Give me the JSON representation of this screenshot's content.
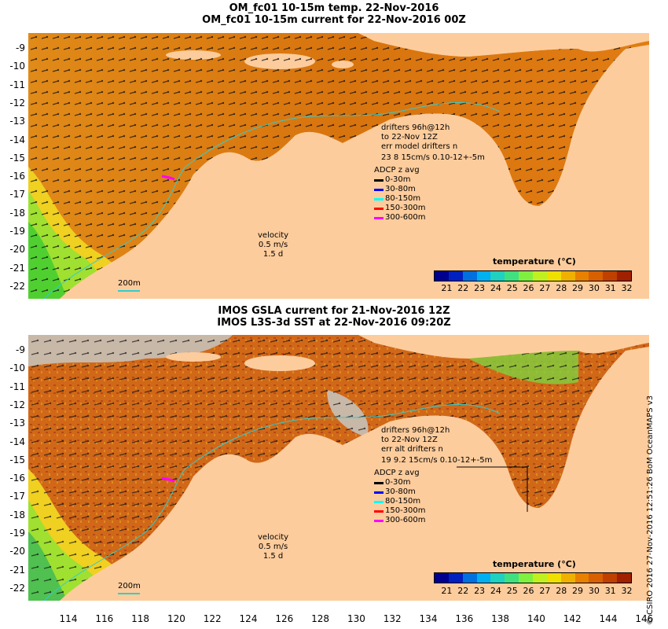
{
  "panels": [
    {
      "title_line1": "OM_fc01 10-15m temp. 22-Nov-2016",
      "title_line2": "OM_fc01 10-15m current for 22-Nov-2016 00Z",
      "drifters_line1": "drifters 96h@12h",
      "drifters_line2": "to 22-Nov 12Z",
      "err_line": "err model drifters n",
      "stats_line": "23 8 15cm/s 0.10-12+-5m",
      "velocity_label": "velocity",
      "velocity_value": "0.5 m/s",
      "velocity_time": "1.5 d",
      "scale_label": "200m"
    },
    {
      "title_line1": "IMOS GSLA current for 21-Nov-2016 12Z",
      "title_line2": "IMOS L3S-3d SST at 22-Nov-2016 09:20Z",
      "drifters_line1": "drifters 96h@12h",
      "drifters_line2": "to 22-Nov 12Z",
      "err_line": "err alt drifters n",
      "stats_line": "19 9.2 15cm/s 0.10-12+-5m",
      "velocity_label": "velocity",
      "velocity_value": "0.5 m/s",
      "velocity_time": "1.5 d",
      "scale_label": "200m"
    }
  ],
  "adcp": {
    "title": "ADCP z avg",
    "bands": [
      {
        "label": "0-30m",
        "color": "#000000"
      },
      {
        "label": "30-80m",
        "color": "#0000ff"
      },
      {
        "label": "80-150m",
        "color": "#00ffff"
      },
      {
        "label": "150-300m",
        "color": "#ff0000"
      },
      {
        "label": "300-600m",
        "color": "#ff00ff"
      }
    ]
  },
  "colorbar": {
    "title": "temperature (°C)",
    "ticks": [
      "21",
      "22",
      "23",
      "24",
      "25",
      "26",
      "27",
      "28",
      "29",
      "30",
      "31",
      "32"
    ],
    "colors": [
      "#00008f",
      "#0020c0",
      "#0070e0",
      "#00b0f0",
      "#20d0c0",
      "#40e080",
      "#80f040",
      "#c0f020",
      "#f0e000",
      "#f0b000",
      "#e88000",
      "#d86000",
      "#c04000",
      "#a02000"
    ]
  },
  "lat_ticks": [
    "-9",
    "-10",
    "-11",
    "-12",
    "-13",
    "-14",
    "-15",
    "-16",
    "-17",
    "-18",
    "-19",
    "-20",
    "-21",
    "-22"
  ],
  "lon_ticks": [
    "114",
    "116",
    "118",
    "120",
    "122",
    "124",
    "126",
    "128",
    "130",
    "132",
    "134",
    "136",
    "138",
    "140",
    "142",
    "144",
    "146"
  ],
  "copyright": "© CSIRO 2016  27-Nov-2016 12:51:26 BoM OceanMAPS v3",
  "colors": {
    "land": "#fdcc9c",
    "ocean_warm": "#e88a10",
    "ocean_hot": "#c85a10",
    "ocean_cool": "#5ad030",
    "missing": "#c8b8a8",
    "isobath": "#33cccc"
  }
}
